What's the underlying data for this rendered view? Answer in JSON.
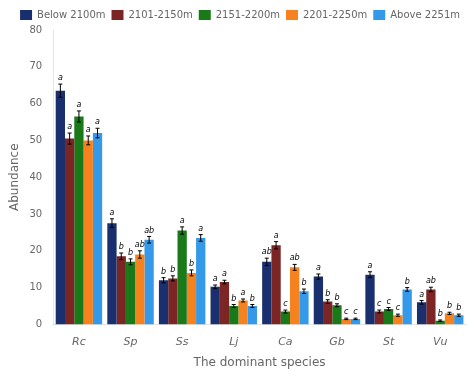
{
  "chart_data": {
    "type": "bar",
    "xlabel": "The dominant species",
    "ylabel": "Abundance",
    "categories": [
      "Rc",
      "Sp",
      "Ss",
      "Lj",
      "Ca",
      "Gb",
      "St",
      "Vu"
    ],
    "series": [
      {
        "name": "Below 2100m",
        "color": "#1a2f6e",
        "values": [
          63.5,
          27.5,
          12.0,
          10.2,
          17.0,
          13.0,
          13.5,
          6.0
        ],
        "errors": [
          1.8,
          1.2,
          0.7,
          0.5,
          1.0,
          0.7,
          0.8,
          0.5
        ],
        "annotations": [
          "a",
          "a",
          "b",
          "a",
          "ab",
          "a",
          "a",
          "a"
        ]
      },
      {
        "name": "2101-2150m",
        "color": "#7b2525",
        "values": [
          50.5,
          18.5,
          12.5,
          11.5,
          21.5,
          6.2,
          3.5,
          9.5
        ],
        "errors": [
          1.5,
          0.9,
          0.7,
          0.5,
          1.0,
          0.5,
          0.4,
          0.6
        ],
        "annotations": [
          "a",
          "b",
          "b",
          "a",
          "a",
          "b",
          "c",
          "ab"
        ]
      },
      {
        "name": "2151-2200m",
        "color": "#1a7a1a",
        "values": [
          56.5,
          17.0,
          25.5,
          5.0,
          3.5,
          5.2,
          4.2,
          1.0
        ],
        "errors": [
          1.5,
          0.8,
          1.0,
          0.4,
          0.4,
          0.4,
          0.4,
          0.2
        ],
        "annotations": [
          "a",
          "b",
          "a",
          "b",
          "c",
          "b",
          "c",
          "b"
        ]
      },
      {
        "name": "2201-2250m",
        "color": "#f5821e",
        "values": [
          50.0,
          19.0,
          14.0,
          6.5,
          15.5,
          1.5,
          2.5,
          3.0
        ],
        "errors": [
          1.2,
          1.0,
          0.8,
          0.4,
          0.8,
          0.2,
          0.3,
          0.3
        ],
        "annotations": [
          "a",
          "ab",
          "b",
          "a",
          "ab",
          "c",
          "c",
          "b"
        ]
      },
      {
        "name": "Above 2251m",
        "color": "#3399e8",
        "values": [
          52.0,
          23.0,
          23.5,
          5.0,
          9.0,
          1.5,
          9.5,
          2.5
        ],
        "errors": [
          1.3,
          0.9,
          0.9,
          0.4,
          0.6,
          0.2,
          0.5,
          0.3
        ],
        "annotations": [
          "a",
          "ab",
          "a",
          "b",
          "b",
          "c",
          "b",
          "b"
        ]
      }
    ],
    "ylim": [
      0,
      80
    ],
    "yticks": [
      0,
      10,
      20,
      30,
      40,
      50,
      60,
      70,
      80
    ],
    "grid": false,
    "legend": "upper right"
  }
}
